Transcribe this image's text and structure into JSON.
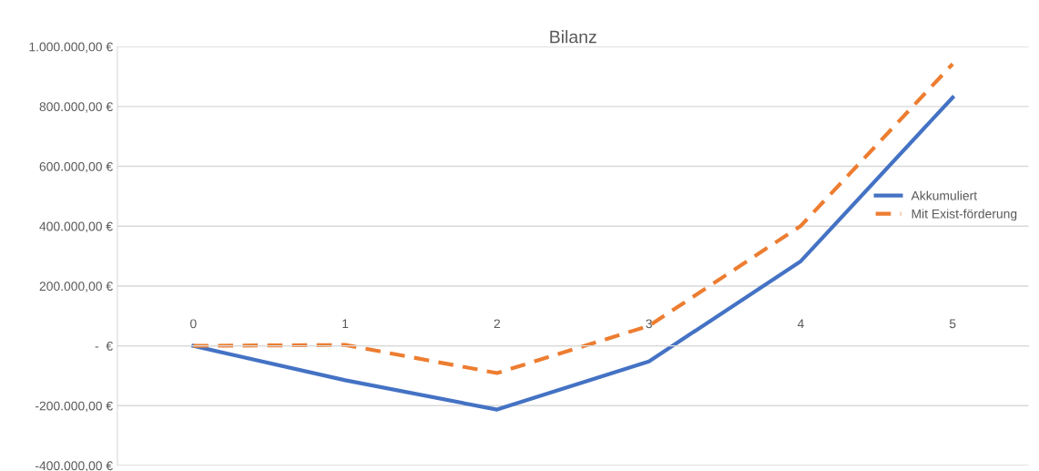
{
  "chart_data": {
    "type": "line",
    "title": "Bilanz",
    "categories": [
      "0",
      "1",
      "2",
      "3",
      "4",
      "5"
    ],
    "series": [
      {
        "name": "Akkumuliert",
        "color": "#4472c4",
        "values": [
          0,
          -115000,
          -213000,
          -52000,
          283000,
          830000
        ],
        "line_style": "solid"
      },
      {
        "name": "Mit Exist-förderung",
        "color": "#ed7d31",
        "values": [
          0,
          3000,
          -91000,
          67000,
          401000,
          942000
        ],
        "line_style": "dashed"
      }
    ],
    "ylim": [
      -400000,
      1000000
    ],
    "yticks": [
      {
        "value": -400000,
        "label": "-400.000,00 €"
      },
      {
        "value": -200000,
        "label": "-200.000,00 €"
      },
      {
        "value": 0,
        "label": "-  €"
      },
      {
        "value": 200000,
        "label": "200.000,00 €"
      },
      {
        "value": 400000,
        "label": "400.000,00 €"
      },
      {
        "value": 600000,
        "label": "600.000,00 €"
      },
      {
        "value": 800000,
        "label": "800.000,00 €"
      },
      {
        "value": 1000000,
        "label": "1.000.000,00 €"
      }
    ],
    "grid": "y",
    "legend": "right",
    "marker": "none"
  }
}
